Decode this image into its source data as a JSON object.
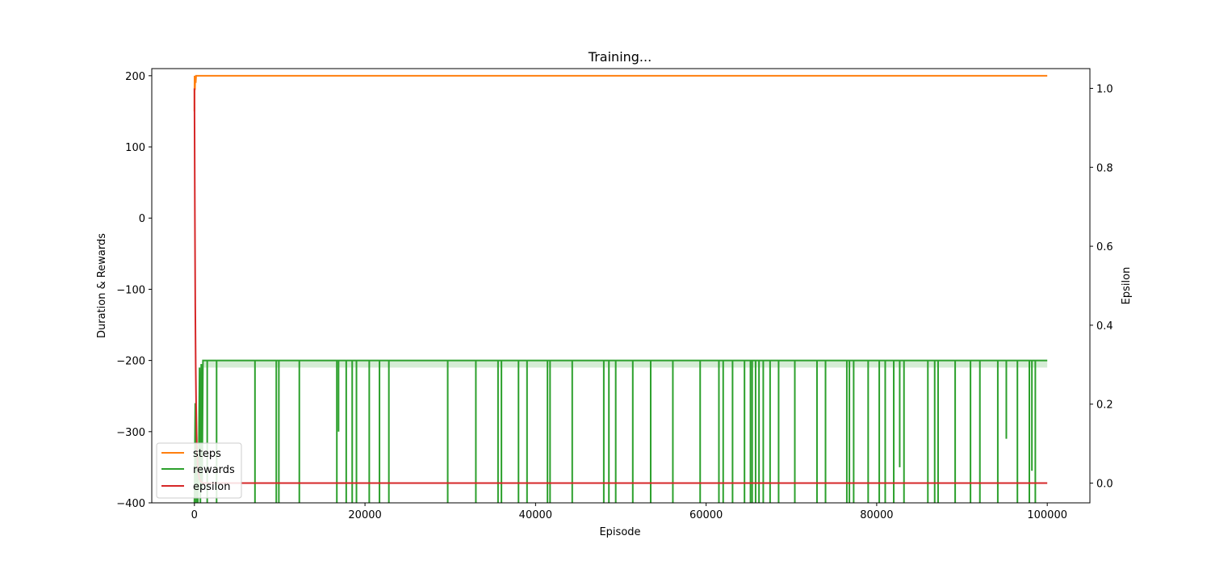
{
  "chart_data": {
    "type": "line",
    "title": "Training...",
    "xlabel": "Episode",
    "ylabel": "Duration & Rewards",
    "y2label": "Epsilon",
    "xlim": [
      -5000,
      105000
    ],
    "ylim": [
      -400,
      210
    ],
    "y2lim": [
      -0.05,
      1.05
    ],
    "x_ticks": [
      0,
      20000,
      40000,
      60000,
      80000,
      100000
    ],
    "y_ticks": [
      -400,
      -300,
      -200,
      -100,
      0,
      100,
      200
    ],
    "y2_ticks": [
      0.0,
      0.2,
      0.4,
      0.6,
      0.8,
      1.0
    ],
    "grid": false,
    "legend_position": "lower-left",
    "series": [
      {
        "name": "steps",
        "axis": "left",
        "color": "#ff7f0e",
        "x": [
          0,
          20,
          60,
          100,
          150,
          200,
          300,
          400,
          600,
          100000
        ],
        "y": [
          150,
          200,
          180,
          200,
          190,
          200,
          200,
          200,
          200,
          200
        ]
      },
      {
        "name": "rewards",
        "axis": "left",
        "color": "#2ca02c",
        "baseline": -200,
        "early": {
          "x": [
            0,
            100,
            200,
            300,
            400,
            500,
            600,
            700,
            800,
            900,
            1000
          ],
          "y": [
            -400,
            -260,
            -400,
            -320,
            -400,
            -350,
            -210,
            -400,
            -205,
            -380,
            -200
          ]
        },
        "drops_x": [
          1500,
          2600,
          7100,
          9600,
          9900,
          12300,
          16700,
          16900,
          17800,
          18500,
          19000,
          20500,
          21700,
          22800,
          29700,
          33000,
          35600,
          36000,
          38000,
          39000,
          41400,
          41700,
          44300,
          48000,
          48600,
          49400,
          51400,
          53500,
          56100,
          59300,
          61500,
          62000,
          63100,
          64500,
          65200,
          65400,
          65800,
          66200,
          66700,
          67500,
          68500,
          70400,
          73000,
          74000,
          76500,
          76800,
          77300,
          79000,
          80300,
          81000,
          82000,
          82700,
          83200,
          86000,
          86800,
          87200,
          89200,
          91000,
          92100,
          94200,
          95200,
          96500,
          97900,
          98200,
          98600
        ],
        "drops_y": [
          -400,
          -400,
          -400,
          -400,
          -400,
          -400,
          -400,
          -300,
          -400,
          -400,
          -400,
          -400,
          -400,
          -400,
          -400,
          -400,
          -400,
          -400,
          -400,
          -400,
          -400,
          -400,
          -400,
          -400,
          -400,
          -400,
          -400,
          -400,
          -400,
          -400,
          -400,
          -400,
          -400,
          -400,
          -400,
          -400,
          -400,
          -400,
          -400,
          -400,
          -400,
          -400,
          -400,
          -400,
          -400,
          -400,
          -400,
          -400,
          -400,
          -400,
          -400,
          -350,
          -400,
          -400,
          -400,
          -400,
          -400,
          -400,
          -400,
          -400,
          -310,
          -400,
          -400,
          -355,
          -400
        ],
        "faint_band": [
          -210,
          -200
        ]
      },
      {
        "name": "epsilon",
        "axis": "right",
        "color": "#d62728",
        "x": [
          0,
          50,
          100,
          150,
          200,
          250,
          300,
          400,
          500,
          600,
          800,
          1000,
          100000
        ],
        "y": [
          1.0,
          0.7,
          0.45,
          0.3,
          0.2,
          0.13,
          0.08,
          0.04,
          0.02,
          0.01,
          0.003,
          0.0,
          0.0
        ]
      }
    ]
  }
}
